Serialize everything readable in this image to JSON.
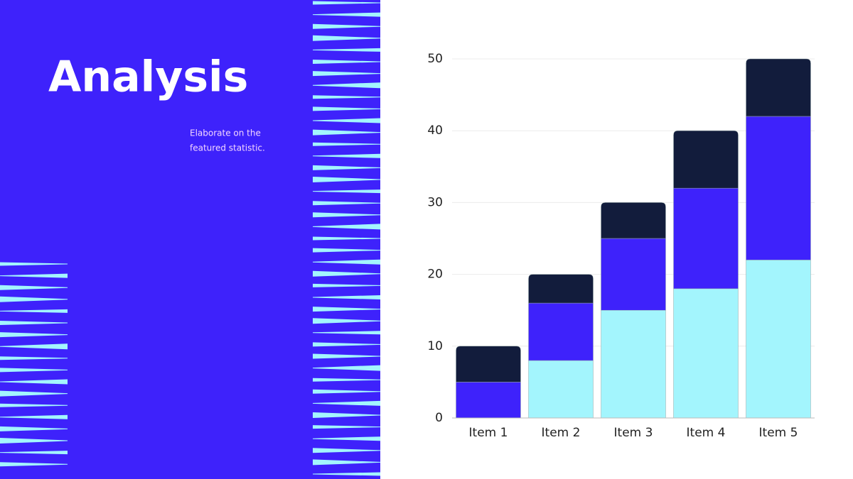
{
  "title": "Analysis",
  "subtitle_lines": [
    "Elaborate on the",
    "featured statistic."
  ],
  "chart_data": {
    "type": "stacked_bar",
    "categories": [
      "Item 1",
      "Item 2",
      "Item 3",
      "Item 4",
      "Item 5"
    ],
    "series": [
      {
        "color": "#a3f5fd",
        "values": [
          0,
          8,
          15,
          18,
          22
        ]
      },
      {
        "color": "#3e22fb",
        "values": [
          5,
          8,
          10,
          14,
          20
        ]
      },
      {
        "color": "#121c3c",
        "values": [
          5,
          4,
          5,
          8,
          8
        ]
      }
    ],
    "ylim": [
      0,
      50
    ],
    "yticks": [
      0,
      10,
      20,
      30,
      40,
      50
    ],
    "grid": true
  }
}
